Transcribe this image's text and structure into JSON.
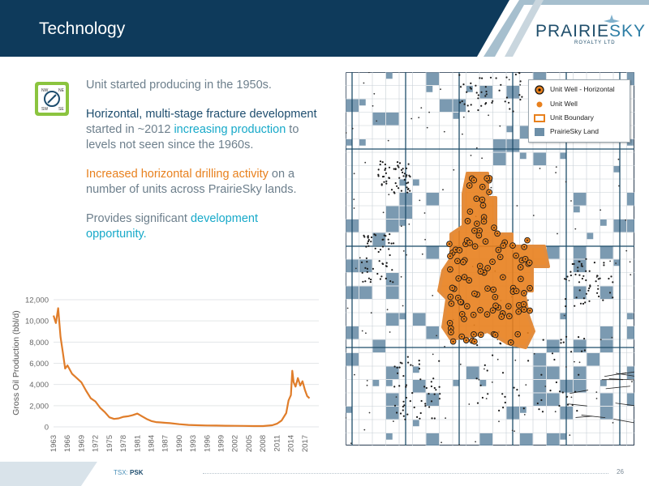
{
  "header": {
    "title": "Technology"
  },
  "logo": {
    "brand_main": "PRAIRIE",
    "brand_accent": "SKY",
    "brand_sub": "ROYALTY LTD"
  },
  "bullets": {
    "b1": "Unit started producing in the 1950s.",
    "b2_dark": "Horizontal, multi-stage fracture development",
    "b2_plain1": " started in ~2012 ",
    "b2_cyan": "increasing production",
    "b2_plain2": " to levels not seen since the 1960s.",
    "b3_orange": "Increased horizontal drilling activity",
    "b3_plain": " on a number of units across PrairieSky lands.",
    "b4_plain": "Provides significant ",
    "b4_cyan": "development opportunity."
  },
  "icon": {
    "name": "compass-map-icon",
    "corner_labels": [
      "NW",
      "NE",
      "SW",
      "SE"
    ]
  },
  "colors": {
    "navy": "#0e3a5b",
    "orange": "#e8801d",
    "cyan": "#17a9c9",
    "land": "#6d8fa8"
  },
  "chart_data": {
    "type": "line",
    "ylabel": "Gross Oil Production (bbl/d)",
    "xlabel": "",
    "ylim": [
      0,
      12000
    ],
    "yticks": [
      0,
      2000,
      4000,
      6000,
      8000,
      10000,
      12000
    ],
    "ytick_labels": [
      "0",
      "2,000",
      "4,000",
      "6,000",
      "8,000",
      "10,000",
      "12,000"
    ],
    "xlim": [
      1963,
      2020
    ],
    "xticks": [
      "1963",
      "1966",
      "1969",
      "1972",
      "1975",
      "1978",
      "1981",
      "1984",
      "1987",
      "1990",
      "1993",
      "1996",
      "1999",
      "2002",
      "2005",
      "2008",
      "2011",
      "2014",
      "2017"
    ],
    "grid": true,
    "series": [
      {
        "color": "#e07d2a",
        "x": [
          1963,
          1963.5,
          1964,
          1964.5,
          1965,
          1965.5,
          1966,
          1967,
          1968,
          1969,
          1970,
          1971,
          1972,
          1973,
          1974,
          1975,
          1976,
          1977,
          1978,
          1979,
          1980,
          1981,
          1982,
          1983,
          1984,
          1985,
          1986,
          1987,
          1988,
          1990,
          1992,
          1994,
          1996,
          1998,
          2000,
          2002,
          2004,
          2006,
          2008,
          2010,
          2011,
          2012,
          2013,
          2013.5,
          2014,
          2014.3,
          2014.6,
          2015,
          2015.5,
          2016,
          2016.5,
          2017,
          2017.5,
          2018
        ],
        "y": [
          10500,
          9800,
          11200,
          8500,
          7000,
          5500,
          5800,
          5000,
          4600,
          4200,
          3400,
          2700,
          2400,
          1800,
          1400,
          900,
          750,
          800,
          950,
          1000,
          1100,
          1250,
          1000,
          750,
          550,
          450,
          420,
          380,
          350,
          250,
          180,
          150,
          130,
          120,
          110,
          100,
          90,
          80,
          80,
          150,
          300,
          600,
          1300,
          2500,
          3000,
          5300,
          4200,
          3800,
          4600,
          3900,
          4300,
          3500,
          2900,
          2700
        ]
      }
    ]
  },
  "map": {
    "legend": {
      "items": [
        "Unit Well - Horizontal",
        "Unit Well",
        "Unit Boundary",
        "PrairieSky Land"
      ]
    }
  },
  "footer": {
    "ticker_prefix": "TSX: ",
    "ticker_symbol": "PSK",
    "page_number": "26"
  }
}
